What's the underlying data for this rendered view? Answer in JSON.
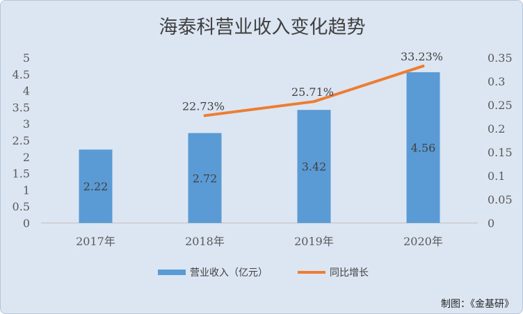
{
  "chart_data": {
    "type": "bar",
    "title": "海泰科营业收入变化趋势",
    "categories": [
      "2017年",
      "2018年",
      "2019年",
      "2020年"
    ],
    "series": [
      {
        "name": "营业收入（亿元）",
        "type": "bar",
        "axis": "left",
        "color": "#5b9bd5",
        "values": [
          2.22,
          2.72,
          3.42,
          4.56
        ],
        "labels": [
          "2.22",
          "2.72",
          "3.42",
          "4.56"
        ]
      },
      {
        "name": "同比增长",
        "type": "line",
        "axis": "right",
        "color": "#ed7d31",
        "values": [
          null,
          0.2273,
          0.2571,
          0.3323
        ],
        "labels": [
          "",
          "22.73%",
          "25.71%",
          "33.23%"
        ]
      }
    ],
    "ylim": [
      0,
      5
    ],
    "y_ticks": [
      "0",
      "0.5",
      "1",
      "1.5",
      "2",
      "2.5",
      "3",
      "3.5",
      "4",
      "4.5",
      "5"
    ],
    "y2lim": [
      0,
      0.35
    ],
    "y2_ticks": [
      "0",
      "0.05",
      "0.1",
      "0.15",
      "0.2",
      "0.25",
      "0.3",
      "0.35"
    ],
    "grid": false,
    "legend": "bottom"
  },
  "source": "制图：《金基研》"
}
